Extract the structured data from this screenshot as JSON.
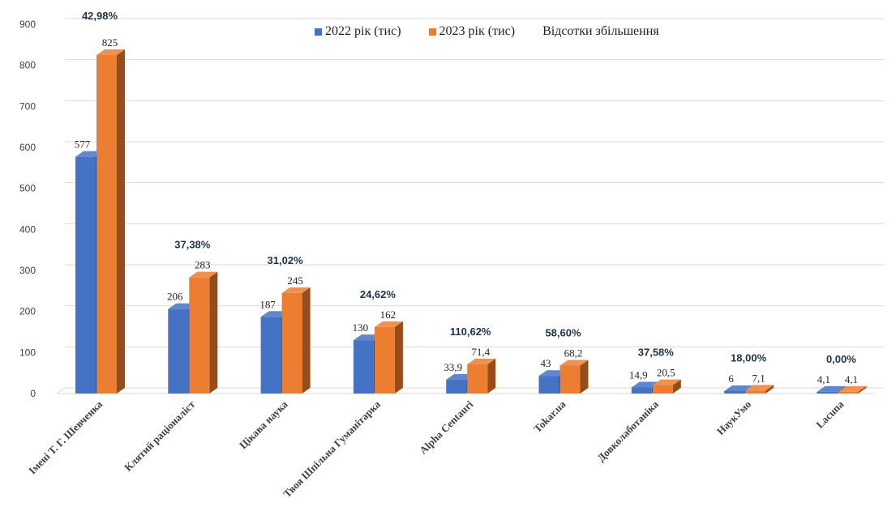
{
  "chart_data": {
    "type": "bar",
    "title": "",
    "xlabel": "",
    "ylabel": "",
    "ylim": [
      0,
      900
    ],
    "yticks": [
      0,
      100,
      200,
      300,
      400,
      500,
      600,
      700,
      800,
      900
    ],
    "grid": true,
    "legend_position": "top",
    "categories": [
      "Імені Т. Г. Шевченка",
      "Клятий раціоналіст",
      "Цікава наука",
      "Твоя Шпільна Гуманітарка",
      "Alpha Centauri",
      "Tokar.ua",
      "Довколаботаніка",
      "НаукУмо",
      "Lacuna"
    ],
    "series": [
      {
        "name": "2022 рік (тис)",
        "color": "#4472c4",
        "values": [
          577,
          206,
          187,
          130,
          33.9,
          43,
          14.9,
          6,
          4.1
        ],
        "labels": [
          "577",
          "206",
          "187",
          "130",
          "33,9",
          "43",
          "14,9",
          "6",
          "4,1"
        ]
      },
      {
        "name": "2023 рік (тис)",
        "color": "#ed7d31",
        "values": [
          825,
          283,
          245,
          162,
          71.4,
          68.2,
          20.5,
          7.1,
          4.1
        ],
        "labels": [
          "825",
          "283",
          "245",
          "162",
          "71,4",
          "68,2",
          "20,5",
          "7,1",
          "4,1"
        ]
      }
    ],
    "percent_series": {
      "name": "Відсотки збільшення",
      "labels": [
        "42,98%",
        "37,38%",
        "31,02%",
        "24,62%",
        "110,62%",
        "58,60%",
        "37,58%",
        "18,00%",
        "0,00%"
      ]
    }
  }
}
